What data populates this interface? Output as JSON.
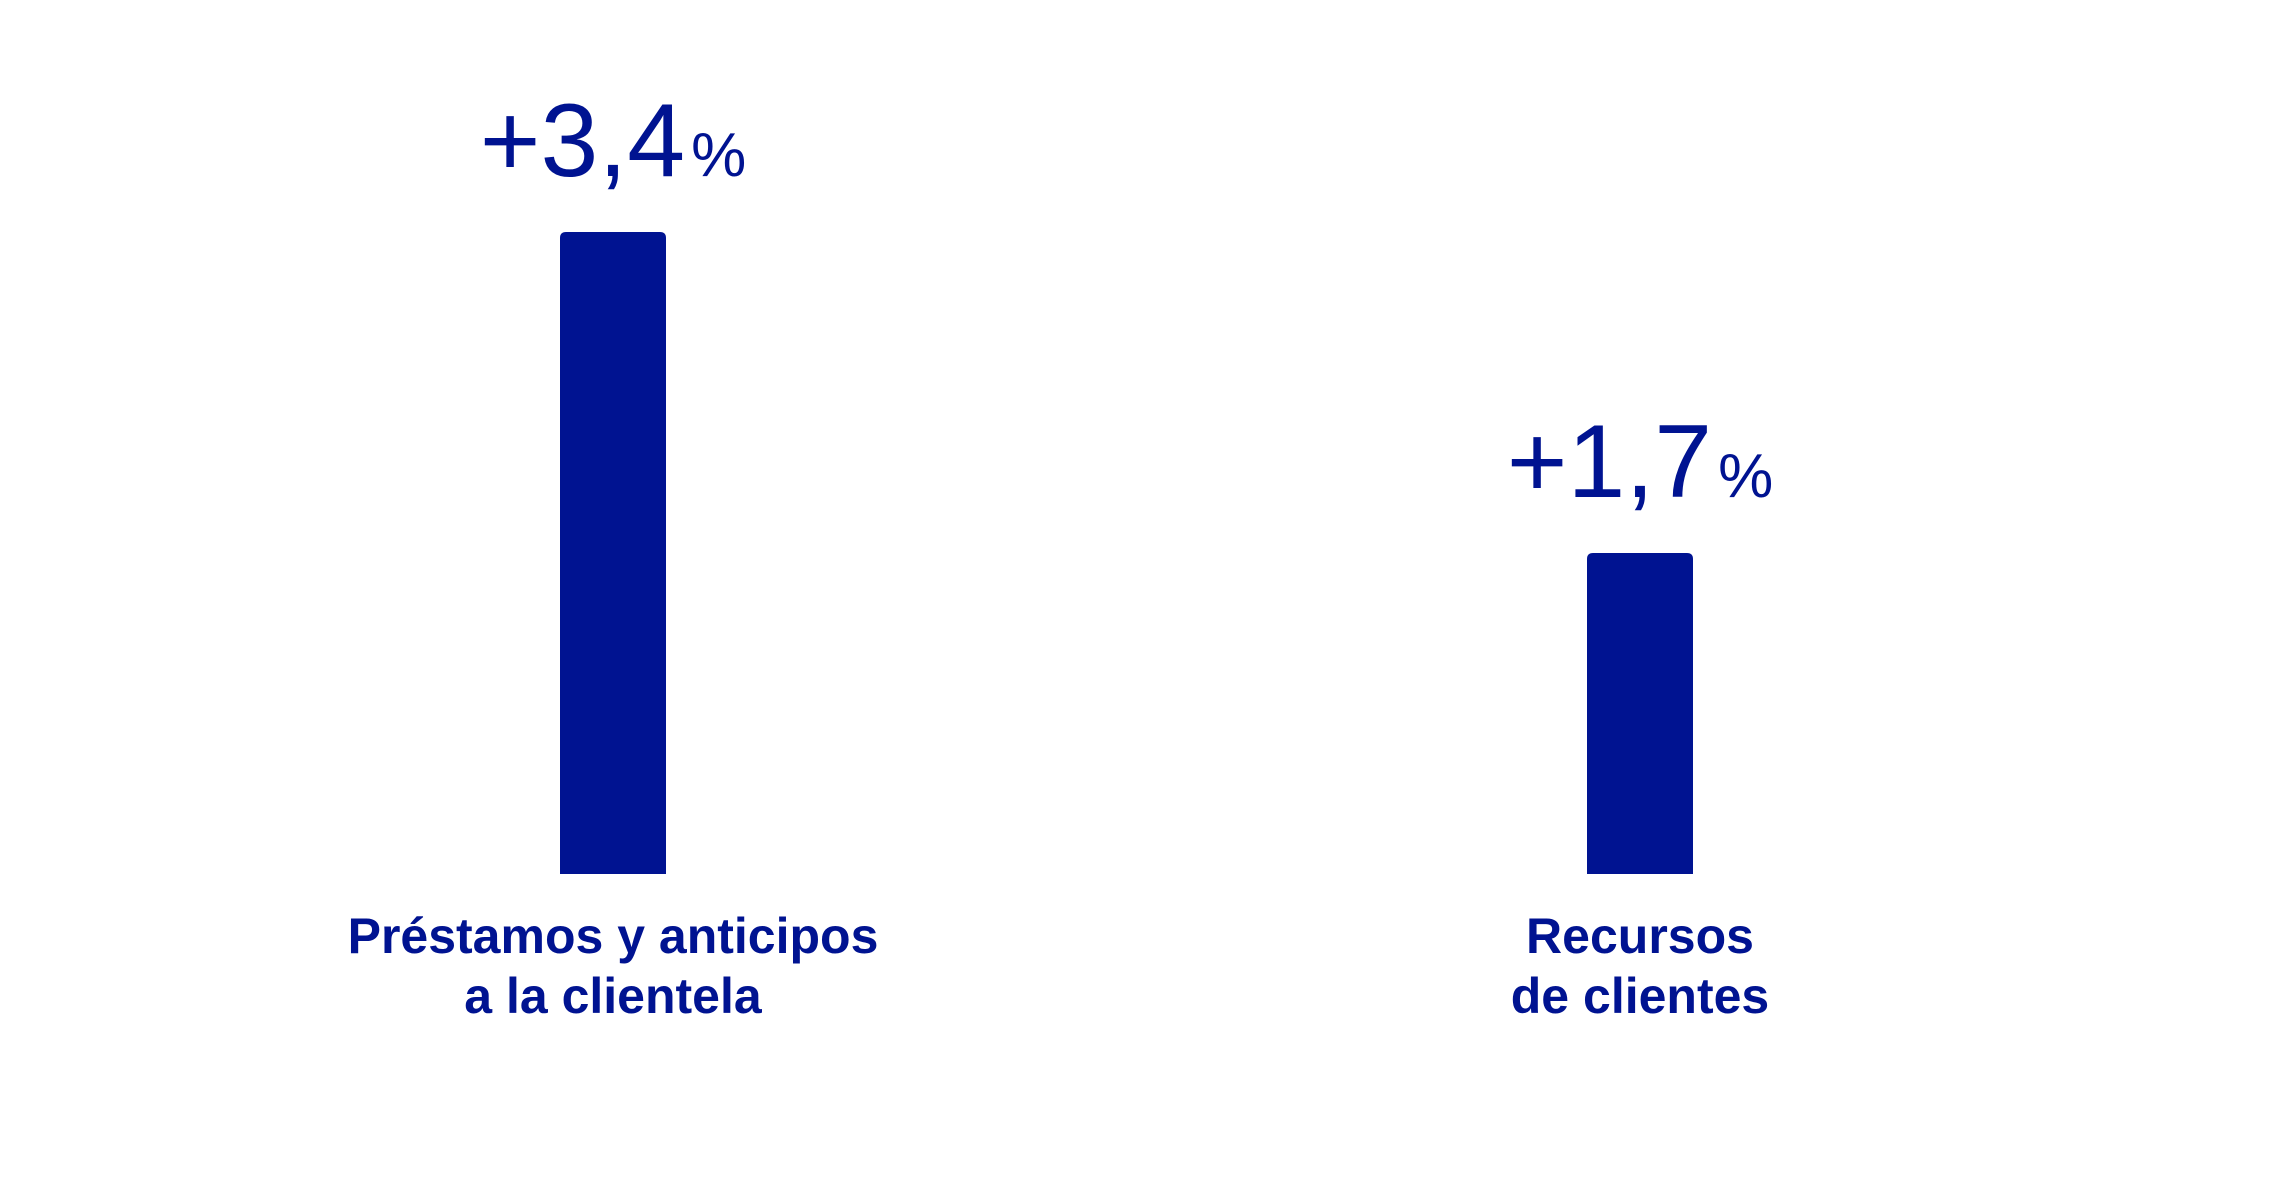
{
  "chart_data": {
    "type": "bar",
    "categories": [
      [
        "Préstamos y anticipos",
        "a la clientela"
      ],
      [
        "Recursos",
        "de clientes"
      ]
    ],
    "values": [
      3.4,
      1.7
    ],
    "data_labels": [
      {
        "number": "+3,4",
        "unit": "%"
      },
      {
        "number": "+1,7",
        "unit": "%"
      }
    ],
    "ylim": [
      0,
      3.4
    ],
    "grid": false,
    "legend": "none",
    "colors": {
      "bar": "#001391",
      "text": "#001391"
    }
  }
}
